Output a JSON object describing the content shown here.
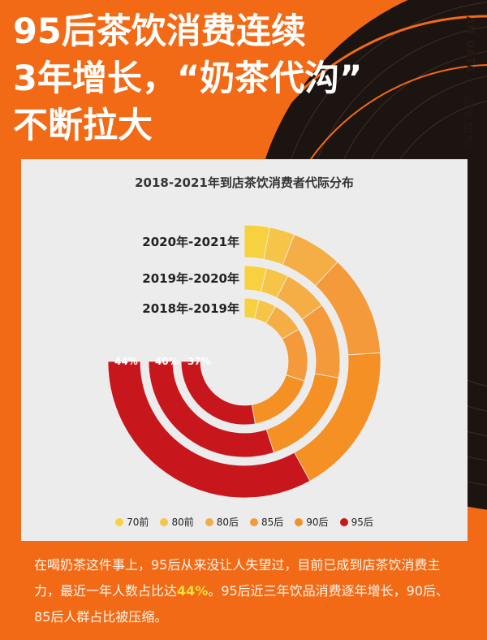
{
  "header": {
    "title_lines": [
      "95后茶饮消费连续",
      "3年增长，“奶茶代沟”",
      "不断拉大"
    ],
    "side_tag": "AN DATA",
    "side_sub": "热点经济"
  },
  "chart_data": {
    "type": "radial-bar",
    "title": "2018-2021年到店茶饮消费者代际分布",
    "categories": [
      "70前",
      "80前",
      "80后",
      "85后",
      "90后",
      "95后"
    ],
    "colors": [
      "#f7d23e",
      "#f6c447",
      "#f4ae45",
      "#f49a3a",
      "#f59024",
      "#c8161d"
    ],
    "series": [
      {
        "name": "2020年-2021年",
        "values": [
          4,
          4,
          8,
          16,
          24,
          44
        ],
        "label": "44%"
      },
      {
        "name": "2019年-2020年",
        "values": [
          5,
          5,
          10,
          17,
          23,
          40
        ],
        "label": "40%"
      },
      {
        "name": "2018年-2019年",
        "values": [
          5,
          6,
          11,
          18,
          23,
          37
        ],
        "label": "37%"
      }
    ]
  },
  "footer": {
    "text_before": "在喝奶茶这件事上，95后从来没让人失望过，目前已成到店茶饮消费主力，最近一年人数占比达",
    "highlight": "44%",
    "text_after": "。95后近三年饮品消费逐年增长，90后、85后人群占比被压缩。"
  }
}
